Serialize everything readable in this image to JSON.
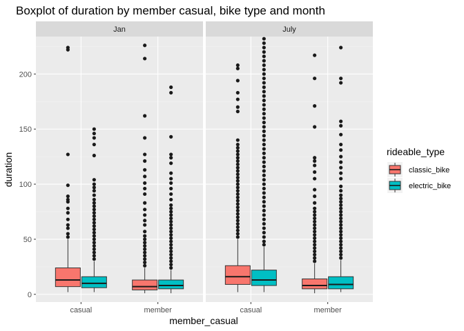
{
  "chart_data": {
    "type": "boxplot",
    "title": "Boxplot of duration by member casual, bike type and month",
    "xlabel": "member_casual",
    "ylabel": "duration",
    "ylim": [
      -7,
      234
    ],
    "yticks": [
      0,
      50,
      100,
      150,
      200
    ],
    "categories": [
      "casual",
      "member"
    ],
    "facets": [
      "Jan",
      "July"
    ],
    "legend": {
      "title": "rideable_type",
      "position": "right",
      "entries": [
        {
          "label": "classic_bike",
          "color": "#F8766D"
        },
        {
          "label": "electric_bike",
          "color": "#00BFC4"
        }
      ]
    },
    "grid": true,
    "panels": [
      {
        "facet": "Jan",
        "boxes": [
          {
            "category": "casual",
            "series": "classic_bike",
            "min": 2,
            "q1": 7,
            "median": 13,
            "q3": 24,
            "max": 50,
            "outliers": [
              52,
              55,
              60,
              63,
              68,
              74,
              78,
              84,
              86,
              89,
              99,
              127,
              222,
              224
            ]
          },
          {
            "category": "casual",
            "series": "electric_bike",
            "min": 2,
            "q1": 6,
            "median": 10,
            "q3": 16,
            "max": 30,
            "outliers": [
              32,
              35,
              38,
              41,
              44,
              47,
              50,
              53,
              56,
              59,
              62,
              65,
              68,
              71,
              74,
              77,
              80,
              83,
              86,
              90,
              94,
              97,
              100,
              104,
              126,
              136,
              142,
              146,
              150
            ]
          },
          {
            "category": "member",
            "series": "classic_bike",
            "min": 1,
            "q1": 4,
            "median": 7,
            "q3": 13,
            "max": 24,
            "outliers": [
              26,
              29,
              32,
              35,
              38,
              41,
              44,
              47,
              50,
              53,
              57,
              63,
              67,
              72,
              77,
              83,
              91,
              96,
              101,
              107,
              113,
              121,
              127,
              142,
              162,
              214,
              226
            ]
          },
          {
            "category": "member",
            "series": "electric_bike",
            "min": 1,
            "q1": 5,
            "median": 8,
            "q3": 13,
            "max": 22,
            "outliers": [
              24,
              27,
              30,
              33,
              36,
              39,
              42,
              45,
              48,
              51,
              54,
              57,
              60,
              63,
              66,
              69,
              72,
              75,
              78,
              81,
              86,
              91,
              96,
              101,
              105,
              110,
              119,
              124,
              127,
              143,
              183,
              188
            ]
          }
        ]
      },
      {
        "facet": "July",
        "boxes": [
          {
            "category": "casual",
            "series": "classic_bike",
            "min": 2,
            "q1": 9,
            "median": 16,
            "q3": 26,
            "max": 50,
            "outliers": [
              52,
              55,
              58,
              61,
              64,
              67,
              70,
              73,
              76,
              79,
              82,
              85,
              88,
              91,
              94,
              97,
              100,
              103,
              106,
              109,
              112,
              115,
              118,
              121,
              124,
              127,
              130,
              133,
              136,
              140,
              166,
              170,
              177,
              183,
              194,
              205,
              208
            ]
          },
          {
            "category": "casual",
            "series": "electric_bike",
            "min": 2,
            "q1": 8,
            "median": 13,
            "q3": 22,
            "max": 43,
            "outliers": [
              45,
              48,
              52,
              56,
              60,
              64,
              68,
              72,
              76,
              80,
              84,
              88,
              92,
              96,
              100,
              104,
              108,
              112,
              116,
              120,
              124,
              128,
              132,
              136,
              140,
              144,
              148,
              152,
              156,
              160,
              164,
              168,
              172,
              176,
              180,
              184,
              188,
              192,
              196,
              200,
              204,
              208,
              212,
              216,
              220,
              224,
              228,
              232
            ]
          },
          {
            "category": "member",
            "series": "classic_bike",
            "min": 1,
            "q1": 5,
            "median": 8,
            "q3": 14,
            "max": 28,
            "outliers": [
              30,
              33,
              36,
              39,
              42,
              45,
              48,
              51,
              54,
              57,
              60,
              63,
              66,
              69,
              72,
              75,
              78,
              83,
              89,
              95,
              105,
              111,
              117,
              121,
              124,
              152,
              171,
              196,
              217
            ]
          },
          {
            "category": "member",
            "series": "electric_bike",
            "min": 2,
            "q1": 5,
            "median": 9,
            "q3": 16,
            "max": 31,
            "outliers": [
              33,
              36,
              39,
              42,
              45,
              48,
              51,
              54,
              57,
              60,
              63,
              66,
              69,
              72,
              75,
              78,
              81,
              84,
              87,
              90,
              94,
              98,
              105,
              110,
              115,
              120,
              125,
              131,
              136,
              145,
              153,
              157,
              192,
              196,
              224
            ]
          }
        ]
      }
    ]
  }
}
